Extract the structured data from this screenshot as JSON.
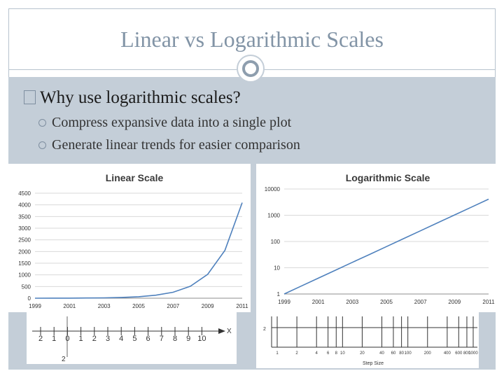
{
  "slide": {
    "title": "Linear vs Logarithmic Scales",
    "heading": "Why use logarithmic scales?",
    "bullets": [
      "Compress expansive data into a single plot",
      "Generate linear trends for easier comparison"
    ]
  },
  "colors": {
    "title": "#8294a6",
    "band": "#c4ced8",
    "line": "#4f81bd"
  },
  "chart_data": [
    {
      "type": "line",
      "title": "Linear Scale",
      "x": [
        1999,
        2000,
        2001,
        2002,
        2003,
        2004,
        2005,
        2006,
        2007,
        2008,
        2009,
        2010,
        2011
      ],
      "values": [
        1,
        2,
        4,
        8,
        16,
        32,
        64,
        128,
        256,
        512,
        1024,
        2048,
        4096
      ],
      "ylim": [
        0,
        4500
      ],
      "yticks": [
        "0",
        "500",
        "1000",
        "1500",
        "2000",
        "2500",
        "3000",
        "3500",
        "4000",
        "4500"
      ],
      "xticks": [
        "1999",
        "2001",
        "2003",
        "2005",
        "2007",
        "2009",
        "2011"
      ],
      "grid": true
    },
    {
      "type": "line",
      "title": "Logarithmic  Scale",
      "scale": "log",
      "x": [
        1999,
        2000,
        2001,
        2002,
        2003,
        2004,
        2005,
        2006,
        2007,
        2008,
        2009,
        2010,
        2011
      ],
      "values": [
        1,
        2,
        4,
        8,
        16,
        32,
        64,
        128,
        256,
        512,
        1024,
        2048,
        4096
      ],
      "ylim": [
        1,
        10000
      ],
      "yticks": [
        "1",
        "10",
        "100",
        "1000",
        "10000"
      ],
      "xticks": [
        "1999",
        "2001",
        "2003",
        "2005",
        "2007",
        "2009",
        "2011"
      ],
      "grid": true
    },
    {
      "type": "number-line",
      "labels": [
        "2",
        "1",
        "0",
        "1",
        "2",
        "3",
        "4",
        "5",
        "6",
        "7",
        "8",
        "9",
        "10"
      ],
      "axis_label": "X",
      "y_label": "2"
    },
    {
      "type": "log-axis",
      "labels": [
        "1",
        "2",
        "4",
        "6",
        "8",
        "10",
        "20",
        "40",
        "60",
        "80",
        "100",
        "200",
        "400",
        "600",
        "800",
        "1000"
      ],
      "y_label": "2",
      "xlabel": "Step Size"
    }
  ]
}
